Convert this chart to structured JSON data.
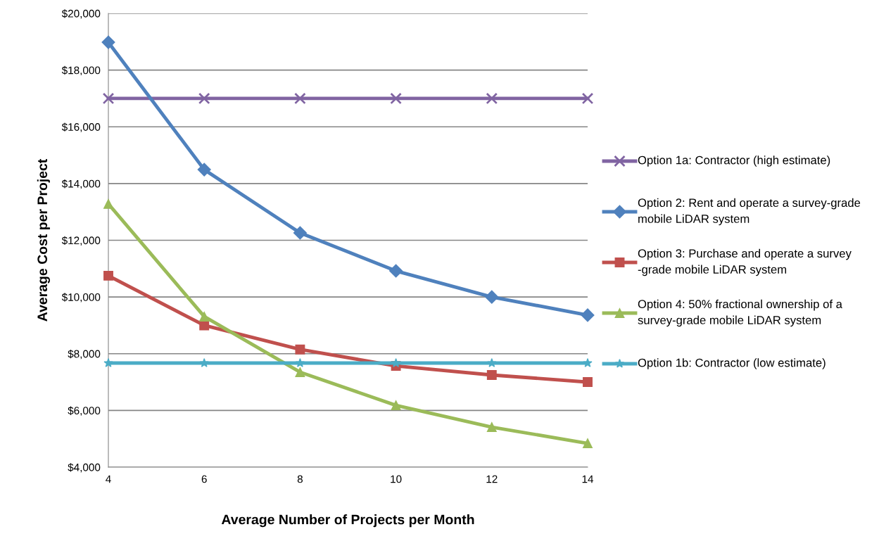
{
  "chart_data": {
    "type": "line",
    "xlabel": "Average Number of Projects per Month",
    "ylabel": "Average Cost per Project",
    "x": [
      4,
      6,
      8,
      10,
      12,
      14
    ],
    "xlim": [
      4,
      14
    ],
    "xticks": [
      4,
      6,
      8,
      10,
      12,
      14
    ],
    "ylim": [
      4000,
      20000
    ],
    "yticks": [
      {
        "value": 4000,
        "label": "$4,000"
      },
      {
        "value": 6000,
        "label": "$6,000"
      },
      {
        "value": 8000,
        "label": "$8,000"
      },
      {
        "value": 10000,
        "label": "$10,000"
      },
      {
        "value": 12000,
        "label": "$12,000"
      },
      {
        "value": 14000,
        "label": "$14,000"
      },
      {
        "value": 16000,
        "label": "$16,000"
      },
      {
        "value": 18000,
        "label": "$18,000"
      },
      {
        "value": 20000,
        "label": "$20,000"
      }
    ],
    "grid": "y",
    "legend": "right",
    "line_style": "solid",
    "series": [
      {
        "name": "Option 1a: Contractor (high estimate)",
        "color": "#8064a2",
        "marker": "cross",
        "values": [
          17000,
          17000,
          17000,
          17000,
          17000,
          17000
        ]
      },
      {
        "name": "Option 2: Rent and operate a survey-grade mobile LiDAR system",
        "color": "#4f81bd",
        "marker": "diamond",
        "values": [
          18980,
          14490,
          12260,
          10920,
          10000,
          9360
        ]
      },
      {
        "name": "Option 3: Purchase and operate a survey -grade mobile LiDAR system",
        "color": "#c0504d",
        "marker": "square",
        "values": [
          10750,
          9000,
          8150,
          7570,
          7250,
          7000
        ]
      },
      {
        "name": "Option 4: 50% fractional ownership of a survey-grade mobile LiDAR system",
        "color": "#9bbb59",
        "marker": "triangle",
        "values": [
          13280,
          9310,
          7350,
          6180,
          5410,
          4840
        ]
      },
      {
        "name": "Option 1b: Contractor (low estimate)",
        "color": "#4bacc6",
        "marker": "star",
        "values": [
          7670,
          7670,
          7670,
          7670,
          7670,
          7670
        ]
      }
    ]
  }
}
